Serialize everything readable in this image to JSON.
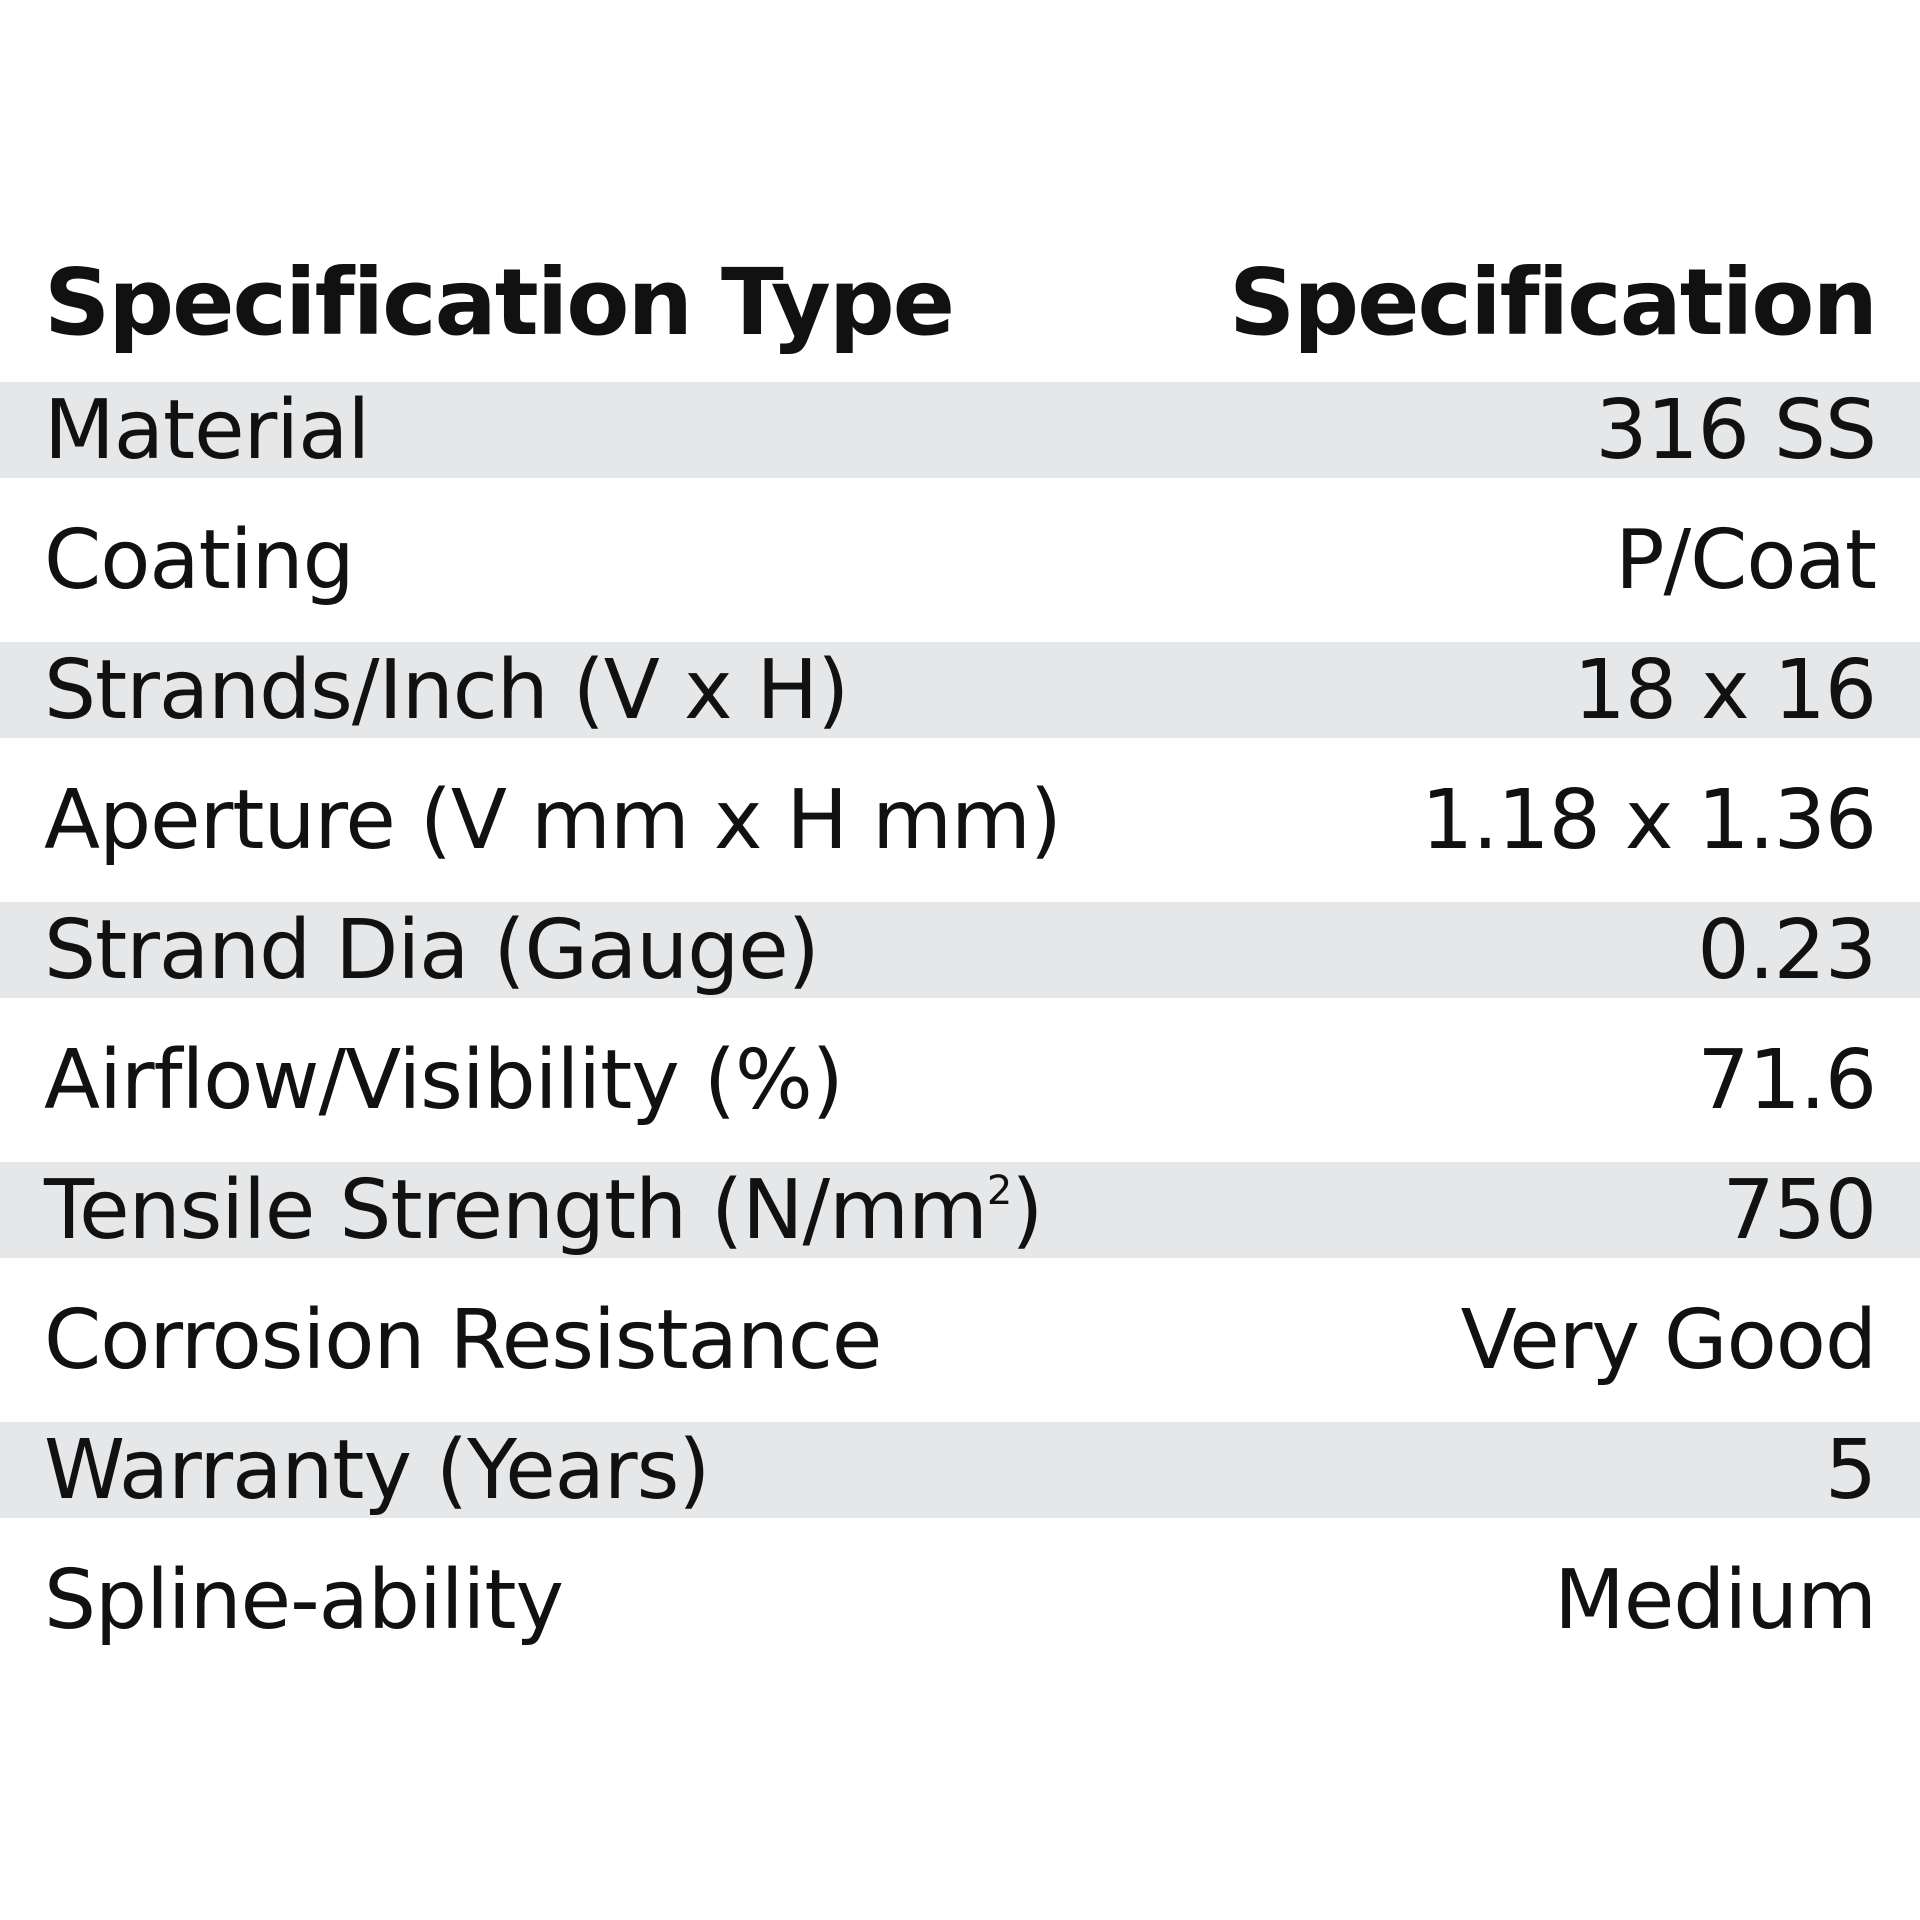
{
  "table": {
    "headers": {
      "type": "Specification Type",
      "spec": "Specification"
    },
    "rows": [
      {
        "type": "Material",
        "value": "316 SS"
      },
      {
        "type": "Coating",
        "value": "P/Coat"
      },
      {
        "type": "Strands/Inch (V x H)",
        "value": "18 x 16"
      },
      {
        "type": "Aperture (V mm x H mm)",
        "value": "1.18 x 1.36"
      },
      {
        "type": "Strand Dia (Gauge)",
        "value": "0.23"
      },
      {
        "type": "Airflow/Visibility (%)",
        "value": "71.6"
      },
      {
        "type": "Tensile Strength (N/mm",
        "type_sup": "2",
        "type_suffix": ")",
        "value": "750"
      },
      {
        "type": "Corrosion Resistance",
        "value": "Very Good"
      },
      {
        "type": "Warranty (Years)",
        "value": "5"
      },
      {
        "type": "Spline-ability",
        "value": "Medium"
      }
    ]
  },
  "colors": {
    "stripe": "#e6e7e8",
    "text": "#111111",
    "background": "#ffffff"
  }
}
